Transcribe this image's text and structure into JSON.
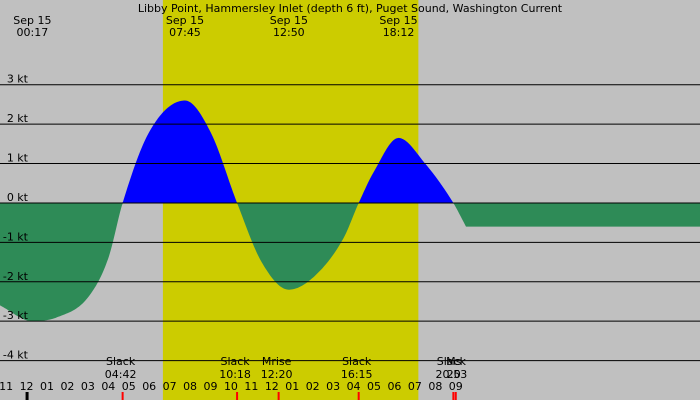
{
  "chart_data": {
    "type": "area",
    "title": "Libby Point, Hammersley Inlet (depth 6 ft), Puget Sound, Washington Current",
    "xlabel": "",
    "ylabel": "",
    "y_unit": "kt",
    "x_range_hours": [
      -1.3,
      32.95
    ],
    "ylim": [
      -5.0,
      5.15
    ],
    "grid": true,
    "daylight": {
      "start_hour": 6.67,
      "end_hour": 19.17
    },
    "colors": {
      "background": "#c0c0c0",
      "daylight": "#cccc00",
      "flood": "#0000ff",
      "ebb": "#2e8b57",
      "slack_marker": "#ff0000",
      "midnight_marker": "#000000"
    },
    "y_ticks": [
      {
        "value": 3,
        "label": "3 kt"
      },
      {
        "value": 2,
        "label": "2 kt"
      },
      {
        "value": 1,
        "label": "1 kt"
      },
      {
        "value": 0,
        "label": "0 kt"
      },
      {
        "value": -1,
        "label": "-1 kt"
      },
      {
        "value": -2,
        "label": "-2 kt"
      },
      {
        "value": -3,
        "label": "-3 kt"
      },
      {
        "value": -4,
        "label": "-4 kt"
      }
    ],
    "x_ticks": [
      {
        "hour": -1,
        "label": "11"
      },
      {
        "hour": 0,
        "label": "12"
      },
      {
        "hour": 1,
        "label": "01"
      },
      {
        "hour": 2,
        "label": "02"
      },
      {
        "hour": 3,
        "label": "03"
      },
      {
        "hour": 4,
        "label": "04"
      },
      {
        "hour": 5,
        "label": "05"
      },
      {
        "hour": 6,
        "label": "06"
      },
      {
        "hour": 7,
        "label": "07"
      },
      {
        "hour": 8,
        "label": "08"
      },
      {
        "hour": 9,
        "label": "09"
      },
      {
        "hour": 10,
        "label": "10"
      },
      {
        "hour": 11,
        "label": "11"
      },
      {
        "hour": 12,
        "label": "12"
      },
      {
        "hour": 13,
        "label": "01"
      },
      {
        "hour": 14,
        "label": "02"
      },
      {
        "hour": 15,
        "label": "03"
      },
      {
        "hour": 16,
        "label": "04"
      },
      {
        "hour": 17,
        "label": "05"
      },
      {
        "hour": 18,
        "label": "06"
      },
      {
        "hour": 19,
        "label": "07"
      },
      {
        "hour": 20,
        "label": "08"
      },
      {
        "hour": 21,
        "label": "09"
      }
    ],
    "top_events": [
      {
        "hour": 0.283,
        "date": "Sep 15",
        "time": "00:17"
      },
      {
        "hour": 7.75,
        "date": "Sep 15",
        "time": "07:45"
      },
      {
        "hour": 12.833,
        "date": "Sep 15",
        "time": "12:50"
      },
      {
        "hour": 18.2,
        "date": "Sep 15",
        "time": "18:12"
      }
    ],
    "bottom_events": [
      {
        "hour": 4.7,
        "label": "Slack",
        "time": "04:42"
      },
      {
        "hour": 10.3,
        "label": "Slack",
        "time": "10:18"
      },
      {
        "hour": 12.333,
        "label": "Mrise",
        "time": "12:20"
      },
      {
        "hour": 16.25,
        "label": "Slack",
        "time": "16:15"
      },
      {
        "hour": 20.883,
        "label": "Slack",
        "time": "20:53"
      },
      {
        "hour": 21.0,
        "label": "Ms",
        "time": "20"
      }
    ],
    "series": [
      {
        "x": [
          -1.3,
          0.28,
          1.5,
          3.0,
          4.0,
          4.7,
          6.0,
          7.75,
          9.0,
          10.3,
          11.5,
          12.83,
          14.0,
          15.5,
          16.25,
          17.0,
          18.2,
          19.5,
          20.88,
          21.5
        ],
        "y": [
          -2.6,
          -3.0,
          -2.9,
          -2.4,
          -1.4,
          0.0,
          1.8,
          2.6,
          1.8,
          0.0,
          -1.5,
          -2.2,
          -1.9,
          -0.9,
          0.0,
          0.8,
          1.65,
          1.0,
          0.0,
          -0.6
        ]
      }
    ]
  }
}
